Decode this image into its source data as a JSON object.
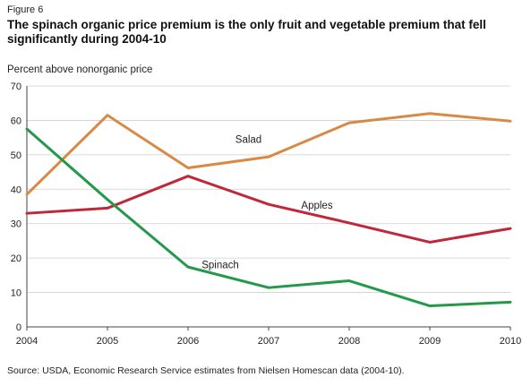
{
  "figure_label": "Figure 6",
  "chart_data": {
    "type": "line",
    "title": "The spinach organic price premium is the only fruit and vegetable premium that fell significantly during 2004-10",
    "ylabel": "Percent above nonorganic price",
    "xlabel": "",
    "x": [
      "2004",
      "2005",
      "2006",
      "2007",
      "2008",
      "2009",
      "2010"
    ],
    "ylim": [
      0,
      70
    ],
    "yticks": [
      "0",
      "10",
      "20",
      "30",
      "40",
      "50",
      "60",
      "70"
    ],
    "grid": true,
    "series": [
      {
        "name": "Salad",
        "color": "#d88a45",
        "values": [
          38.5,
          61.5,
          46.2,
          49.4,
          59.3,
          62.0,
          59.8
        ]
      },
      {
        "name": "Apples",
        "color": "#c0283a",
        "values": [
          33.0,
          34.5,
          43.8,
          35.6,
          30.2,
          24.6,
          28.6
        ]
      },
      {
        "name": "Spinach",
        "color": "#23994a",
        "values": [
          57.5,
          37.0,
          17.4,
          11.4,
          13.4,
          6.1,
          7.2
        ]
      }
    ]
  },
  "source": "Source: USDA, Economic Research Service estimates from Nielsen Homescan data (2004-10)."
}
